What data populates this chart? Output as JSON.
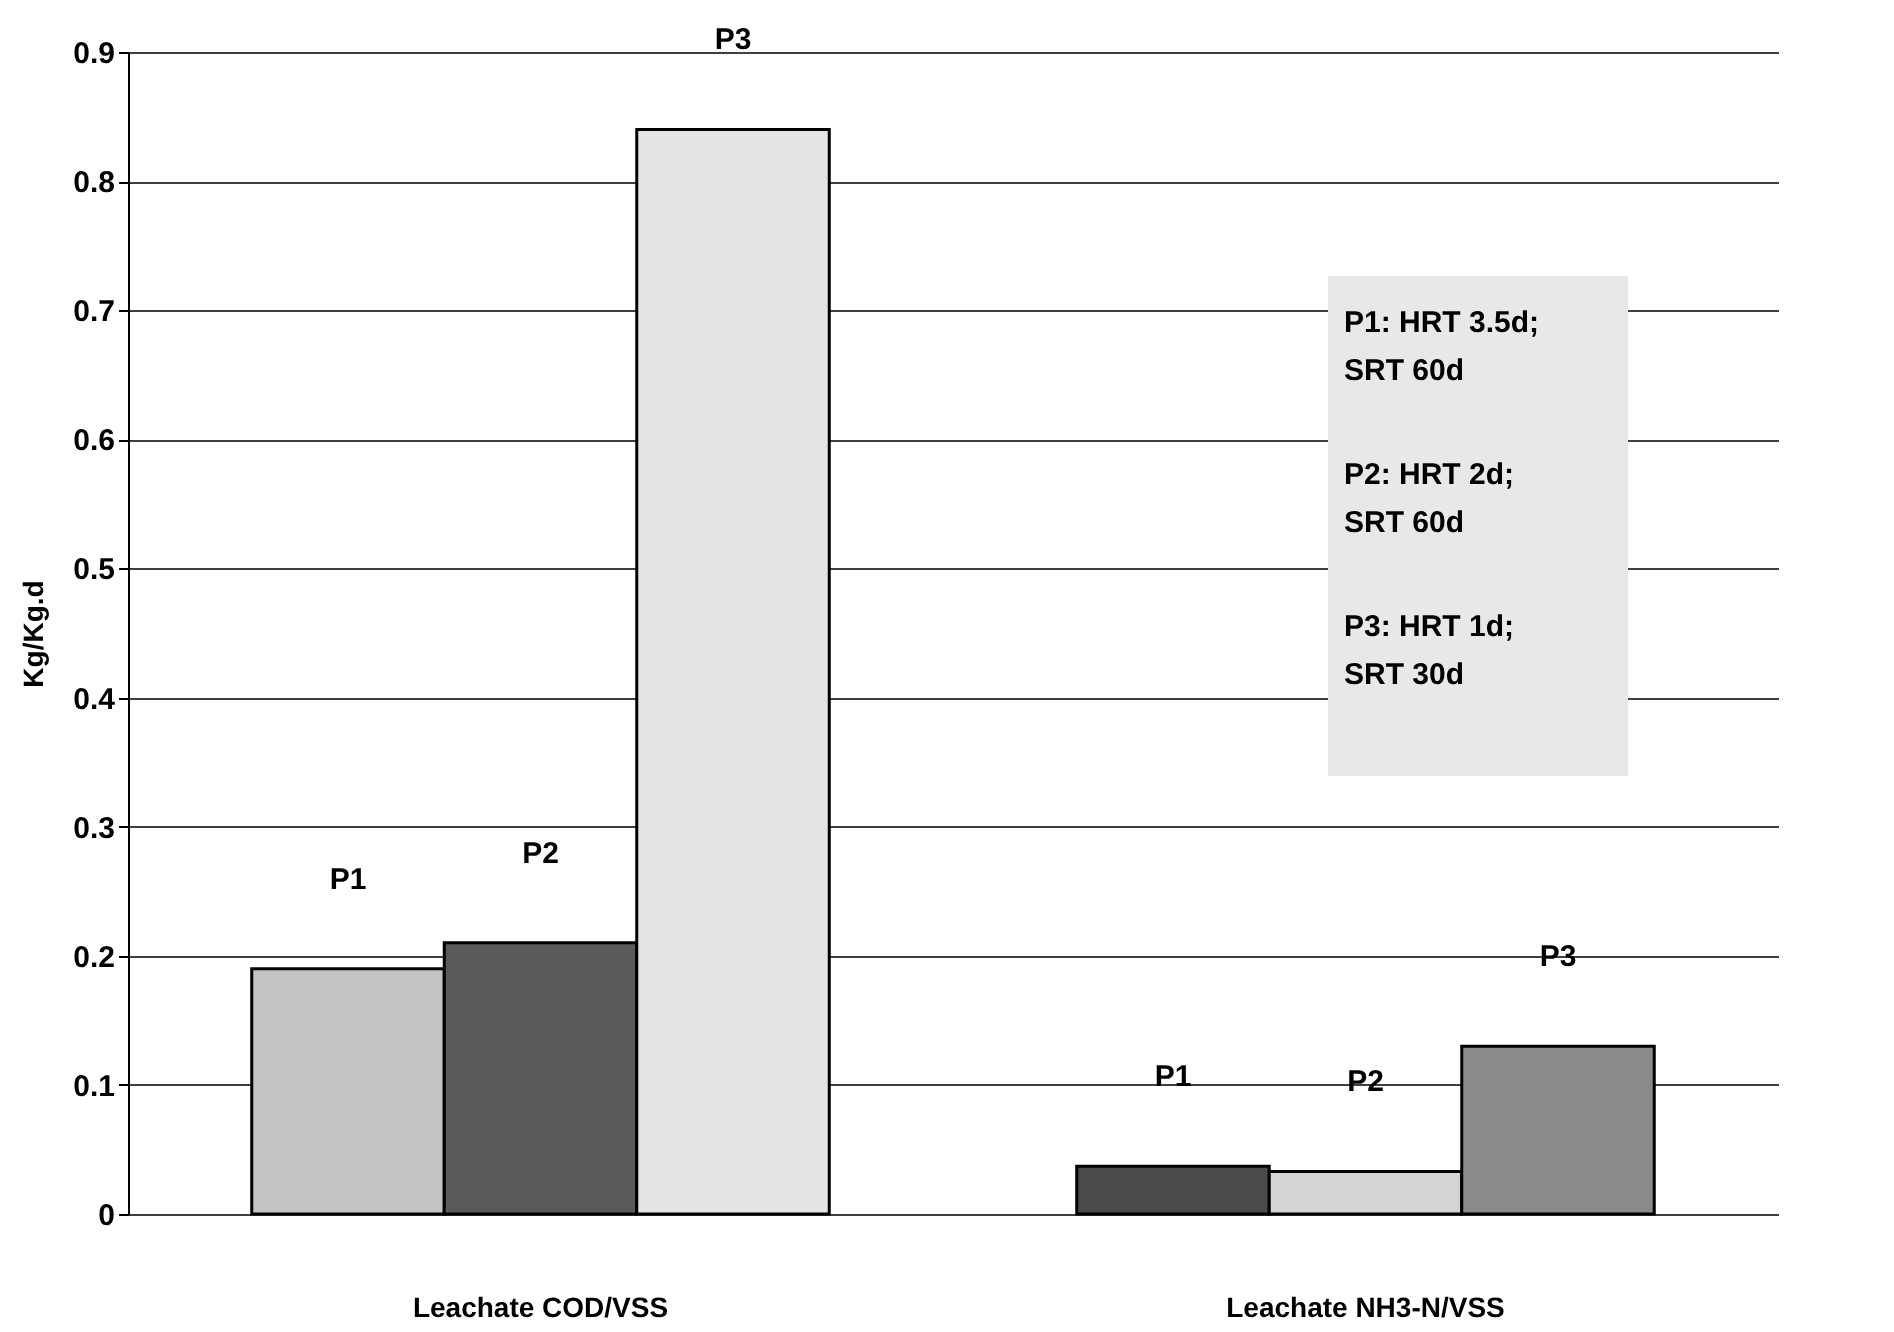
{
  "chart_data": {
    "type": "bar",
    "ylabel": "Kg/Kg.d",
    "categories": [
      "Leachate COD/VSS",
      "Leachate NH3-N/VSS"
    ],
    "series": [
      {
        "name": "P1",
        "colors": [
          "#c4c4c4",
          "#4a4a4a"
        ],
        "values": [
          0.19,
          0.037
        ]
      },
      {
        "name": "P2",
        "colors": [
          "#5a5a5a",
          "#d4d4d4"
        ],
        "values": [
          0.21,
          0.033
        ]
      },
      {
        "name": "P3",
        "colors": [
          "#e4e4e4",
          "#8a8a8a"
        ],
        "values": [
          0.84,
          0.13
        ]
      }
    ],
    "ylim": [
      0,
      0.9
    ],
    "yticks": [
      0,
      0.1,
      0.2,
      0.3,
      0.4,
      0.5,
      0.6,
      0.7,
      0.8,
      0.9
    ],
    "grid": "y",
    "annotations": [
      "P1: HRT 3.5d; SRT 60d",
      "P2: HRT 2d; SRT 60d",
      "P3: HRT 1d; SRT 30d"
    ]
  }
}
